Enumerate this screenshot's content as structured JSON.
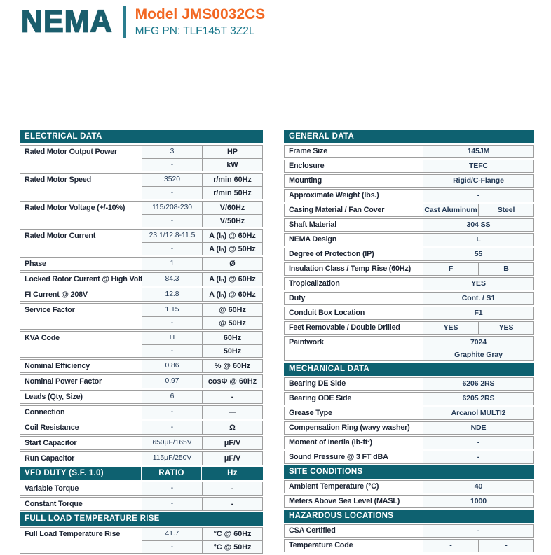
{
  "header": {
    "logo": "NEMA",
    "model": "Model JMS0032CS",
    "mfg_pn": "MFG PN: TLF145T 3Z2L"
  },
  "colors": {
    "teal": "#0e6170",
    "logo": "#1b5e6d",
    "divider": "#2a7d8e",
    "orange": "#f26722",
    "mfg": "#17768a",
    "border": "#9e9e9e",
    "label": "#1c2433",
    "value": "#243a56",
    "tint": "#f6fafb"
  },
  "left_blocks": [
    {
      "type": "header",
      "label": "ELECTRICAL DATA"
    },
    {
      "type": "group",
      "label": "Rated Motor Output Power",
      "rows": [
        [
          "3",
          "HP"
        ],
        [
          "-",
          "kW"
        ]
      ]
    },
    {
      "type": "group",
      "label": "Rated Motor Speed",
      "rows": [
        [
          "3520",
          "r/min 60Hz"
        ],
        [
          "-",
          "r/min 50Hz"
        ]
      ]
    },
    {
      "type": "group",
      "label": "Rated Motor Voltage (+/-10%)",
      "rows": [
        [
          "115/208-230",
          "V/60Hz"
        ],
        [
          "-",
          "V/50Hz"
        ]
      ]
    },
    {
      "type": "group",
      "label": "Rated Motor Current",
      "rows": [
        [
          "23.1/12.8-11.5",
          "A (Iₙ) @ 60Hz"
        ],
        [
          "-",
          "A (Iₙ) @ 50Hz"
        ]
      ]
    },
    {
      "type": "group",
      "label": "Phase",
      "rows": [
        [
          "1",
          "Ø"
        ]
      ]
    },
    {
      "type": "group",
      "label": "Locked Rotor Current @ High Voltage",
      "rows": [
        [
          "84.3",
          "A (Iₙ) @ 60Hz"
        ]
      ]
    },
    {
      "type": "group",
      "label": "FI Current @ 208V",
      "rows": [
        [
          "12.8",
          "A (Iₙ) @ 60Hz"
        ]
      ]
    },
    {
      "type": "group",
      "label": "Service Factor",
      "rows": [
        [
          "1.15",
          "@ 60Hz"
        ],
        [
          "-",
          "@ 50Hz"
        ]
      ]
    },
    {
      "type": "group",
      "label": "KVA Code",
      "rows": [
        [
          "H",
          "60Hz"
        ],
        [
          "-",
          "50Hz"
        ]
      ]
    },
    {
      "type": "group",
      "label": "Nominal Efficiency",
      "rows": [
        [
          "0.86",
          "% @ 60Hz"
        ]
      ]
    },
    {
      "type": "group",
      "label": "Nominal Power Factor",
      "rows": [
        [
          "0.97",
          "cosΦ @ 60Hz"
        ]
      ]
    },
    {
      "type": "group",
      "label": "Leads (Qty, Size)",
      "rows": [
        [
          "6",
          "-"
        ]
      ]
    },
    {
      "type": "group",
      "label": "Connection",
      "rows": [
        [
          "-",
          "—"
        ]
      ]
    },
    {
      "type": "group",
      "label": "Coil Resistance",
      "rows": [
        [
          "-",
          "Ω"
        ]
      ]
    },
    {
      "type": "group",
      "label": "Start Capacitor",
      "rows": [
        [
          "650μF/165V",
          "μF/V"
        ]
      ]
    },
    {
      "type": "group",
      "label": "Run Capacitor",
      "rows": [
        [
          "115μF/250V",
          "μF/V"
        ]
      ]
    },
    {
      "type": "header",
      "label": "VFD DUTY (S.F. 1.0)",
      "cols": [
        "RATIO",
        "Hz"
      ]
    },
    {
      "type": "group",
      "label": "Variable Torque",
      "rows": [
        [
          "-",
          "-"
        ]
      ]
    },
    {
      "type": "group",
      "label": "Constant Torque",
      "rows": [
        [
          "-",
          "-"
        ]
      ]
    },
    {
      "type": "header",
      "label": "FULL LOAD TEMPERATURE RISE"
    },
    {
      "type": "group",
      "label": "Full Load Temperature Rise",
      "rows": [
        [
          "41.7",
          "°C @ 60Hz"
        ],
        [
          "-",
          "°C @ 50Hz"
        ]
      ]
    }
  ],
  "right_blocks": [
    {
      "type": "header",
      "label": "GENERAL DATA"
    },
    {
      "type": "row",
      "label": "Frame Size",
      "values": [
        "145JM"
      ]
    },
    {
      "type": "row",
      "label": "Enclosure",
      "values": [
        "TEFC"
      ]
    },
    {
      "type": "row",
      "label": "Mounting",
      "values": [
        "Rigid/C-Flange"
      ]
    },
    {
      "type": "row",
      "label": "Approximate Weight (lbs.)",
      "values": [
        "-"
      ]
    },
    {
      "type": "row",
      "label": "Casing Material / Fan Cover",
      "values": [
        "Cast Aluminum",
        "Steel"
      ]
    },
    {
      "type": "row",
      "label": "Shaft Material",
      "values": [
        "304 SS"
      ]
    },
    {
      "type": "row",
      "label": "NEMA Design",
      "values": [
        "L"
      ]
    },
    {
      "type": "row",
      "label": "Degree of Protection (IP)",
      "values": [
        "55"
      ]
    },
    {
      "type": "row",
      "label": "Insulation Class / Temp Rise (60Hz)",
      "values": [
        "F",
        "B"
      ]
    },
    {
      "type": "row",
      "label": "Tropicalization",
      "values": [
        "YES"
      ]
    },
    {
      "type": "row",
      "label": "Duty",
      "values": [
        "Cont. / S1"
      ]
    },
    {
      "type": "row",
      "label": "Conduit Box Location",
      "values": [
        "F1"
      ]
    },
    {
      "type": "row",
      "label": "Feet Removable / Double Drilled",
      "values": [
        "YES",
        "YES"
      ]
    },
    {
      "type": "stack",
      "label": "Paintwork",
      "values": [
        "7024",
        "Graphite Gray"
      ]
    },
    {
      "type": "header",
      "label": "MECHANICAL DATA"
    },
    {
      "type": "row",
      "label": "Bearing DE Side",
      "values": [
        "6206 2RS"
      ]
    },
    {
      "type": "row",
      "label": "Bearing ODE Side",
      "values": [
        "6205 2RS"
      ]
    },
    {
      "type": "row",
      "label": "Grease Type",
      "values": [
        "Arcanol MULTI2"
      ]
    },
    {
      "type": "row",
      "label": "Compensation Ring (wavy washer)",
      "values": [
        "NDE"
      ]
    },
    {
      "type": "row",
      "label": "Moment of Inertia (lb-ft²)",
      "values": [
        "-"
      ]
    },
    {
      "type": "row",
      "label": "Sound Pressure @ 3 FT dBA",
      "values": [
        "-"
      ]
    },
    {
      "type": "header",
      "label": "SITE CONDITIONS"
    },
    {
      "type": "row",
      "label": "Ambient Temperature (°C)",
      "values": [
        "40"
      ]
    },
    {
      "type": "row",
      "label": "Meters Above Sea Level (MASL)",
      "values": [
        "1000"
      ]
    },
    {
      "type": "header",
      "label": "HAZARDOUS LOCATIONS"
    },
    {
      "type": "row",
      "label": "CSA Certified",
      "values": [
        "-"
      ]
    },
    {
      "type": "row",
      "label": "Temperature Code",
      "values": [
        "-",
        "-"
      ]
    }
  ]
}
